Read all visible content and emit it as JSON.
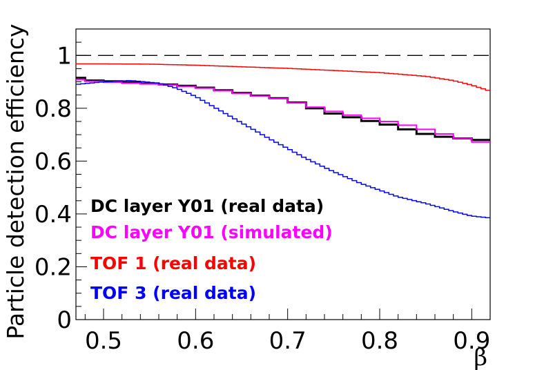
{
  "chart_data": {
    "type": "line",
    "style": "step",
    "title": "",
    "xlabel": "β",
    "ylabel": "Particle detection efficiency",
    "xlim": [
      0.47,
      0.92
    ],
    "ylim": [
      0,
      1.1
    ],
    "x_ticks": [
      {
        "value": 0.5,
        "label": "0.5"
      },
      {
        "value": 0.6,
        "label": "0.6"
      },
      {
        "value": 0.7,
        "label": "0.7"
      },
      {
        "value": 0.8,
        "label": "0.8"
      },
      {
        "value": 0.9,
        "label": "0.9"
      }
    ],
    "y_ticks": [
      {
        "value": 0,
        "label": "0"
      },
      {
        "value": 0.2,
        "label": "0.2"
      },
      {
        "value": 0.4,
        "label": "0.4"
      },
      {
        "value": 0.6,
        "label": "0.6"
      },
      {
        "value": 0.8,
        "label": "0.8"
      },
      {
        "value": 1,
        "label": "1"
      }
    ],
    "reference_line": {
      "y": 1.0,
      "style": "dashed",
      "color": "#000000"
    },
    "legend_position": "lower-left",
    "series": [
      {
        "name": "DC layer Y01 (real data)",
        "color": "#000000",
        "line_width": 3,
        "bin_edges": [
          0.47,
          0.48,
          0.5,
          0.52,
          0.54,
          0.56,
          0.58,
          0.6,
          0.62,
          0.64,
          0.66,
          0.68,
          0.7,
          0.72,
          0.74,
          0.76,
          0.78,
          0.8,
          0.82,
          0.84,
          0.86,
          0.88,
          0.9,
          0.92
        ],
        "values": [
          0.915,
          0.905,
          0.902,
          0.898,
          0.894,
          0.89,
          0.885,
          0.878,
          0.868,
          0.858,
          0.848,
          0.838,
          0.822,
          0.8,
          0.78,
          0.766,
          0.752,
          0.738,
          0.72,
          0.703,
          0.692,
          0.686,
          0.68
        ]
      },
      {
        "name": "DC layer Y01 (simulated)",
        "color": "#ff00ff",
        "line_width": 2,
        "bin_edges": [
          0.47,
          0.48,
          0.5,
          0.52,
          0.54,
          0.56,
          0.58,
          0.6,
          0.62,
          0.64,
          0.66,
          0.68,
          0.7,
          0.72,
          0.74,
          0.76,
          0.78,
          0.8,
          0.82,
          0.84,
          0.86,
          0.88,
          0.9,
          0.92
        ],
        "values": [
          0.908,
          0.902,
          0.898,
          0.895,
          0.892,
          0.888,
          0.882,
          0.876,
          0.866,
          0.856,
          0.846,
          0.836,
          0.82,
          0.804,
          0.788,
          0.774,
          0.762,
          0.75,
          0.736,
          0.72,
          0.703,
          0.686,
          0.672
        ]
      },
      {
        "name": "TOF 1 (real data)",
        "color": "#ff0000",
        "line_width": 1.5,
        "x": [
          0.47,
          0.5,
          0.55,
          0.6,
          0.65,
          0.7,
          0.75,
          0.8,
          0.85,
          0.88,
          0.9,
          0.92
        ],
        "y": [
          0.968,
          0.968,
          0.967,
          0.963,
          0.957,
          0.951,
          0.943,
          0.935,
          0.921,
          0.905,
          0.888,
          0.865
        ]
      },
      {
        "name": "TOF 3 (real data)",
        "color": "#0000ff",
        "line_width": 1.5,
        "x": [
          0.47,
          0.5,
          0.53,
          0.56,
          0.58,
          0.6,
          0.62,
          0.65,
          0.68,
          0.7,
          0.72,
          0.75,
          0.78,
          0.8,
          0.82,
          0.85,
          0.88,
          0.9,
          0.92
        ],
        "y": [
          0.89,
          0.9,
          0.905,
          0.895,
          0.875,
          0.845,
          0.805,
          0.745,
          0.685,
          0.648,
          0.61,
          0.56,
          0.515,
          0.49,
          0.465,
          0.44,
          0.41,
          0.392,
          0.385
        ]
      }
    ]
  }
}
